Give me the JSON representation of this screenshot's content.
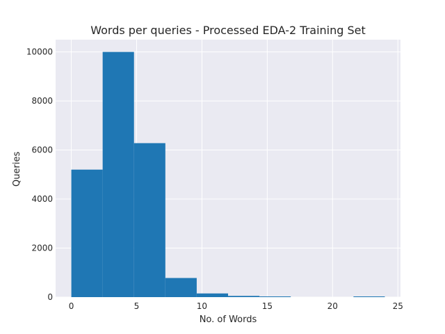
{
  "chart_data": {
    "type": "bar",
    "title": "Words per queries - Processed EDA-2 Training Set",
    "xlabel": "No. of Words",
    "ylabel": "Queries",
    "xlim": [
      -1.2,
      25.2
    ],
    "ylim": [
      0,
      10500
    ],
    "xticks": [
      0,
      5,
      10,
      15,
      20,
      25
    ],
    "yticks": [
      0,
      2000,
      4000,
      6000,
      8000,
      10000
    ],
    "bins": [
      {
        "start": 0.0,
        "end": 2.4,
        "value": 5200
      },
      {
        "start": 2.4,
        "end": 4.8,
        "value": 10000
      },
      {
        "start": 4.8,
        "end": 7.2,
        "value": 6280
      },
      {
        "start": 7.2,
        "end": 9.6,
        "value": 780
      },
      {
        "start": 9.6,
        "end": 12.0,
        "value": 150
      },
      {
        "start": 12.0,
        "end": 14.4,
        "value": 50
      },
      {
        "start": 14.4,
        "end": 16.8,
        "value": 5
      },
      {
        "start": 16.8,
        "end": 19.2,
        "value": 0
      },
      {
        "start": 19.2,
        "end": 21.6,
        "value": 0
      },
      {
        "start": 21.6,
        "end": 24.0,
        "value": 1
      }
    ],
    "bar_color": "#1f77b4",
    "background_color": "#eaeaf2",
    "grid": true
  }
}
